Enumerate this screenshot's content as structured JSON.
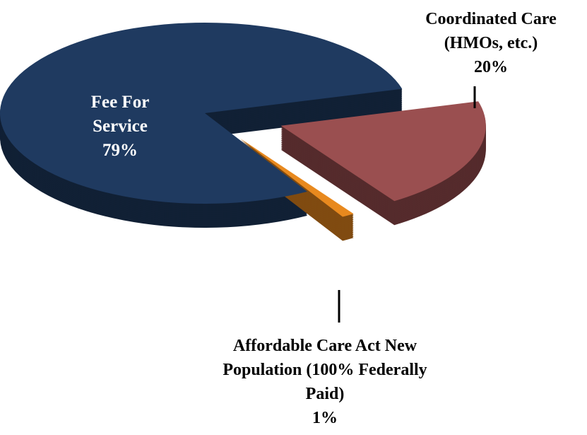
{
  "chart_data": {
    "type": "pie",
    "categories": [
      "Fee For Service",
      "Coordinated Care (HMOs, etc.)",
      "Affordable Care Act New Population (100% Federally Paid)"
    ],
    "values": [
      79,
      20,
      1
    ],
    "value_labels": [
      "79%",
      "20%",
      "1%"
    ],
    "colors": [
      "#1f3a60",
      "#9a4f50",
      "#e8891e"
    ]
  }
}
